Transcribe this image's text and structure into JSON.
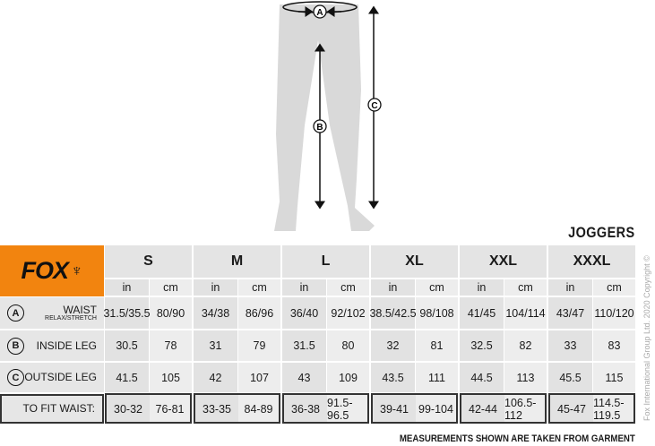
{
  "title": "JOGGERS",
  "logo_text": "FOX",
  "diagram_labels": [
    "A",
    "B",
    "C"
  ],
  "sizes": [
    "S",
    "M",
    "L",
    "XL",
    "XXL",
    "XXXL"
  ],
  "units": [
    "in",
    "cm"
  ],
  "rows": [
    {
      "marker": "A",
      "label": "WAIST",
      "sublabel": "RELAX/STRETCH",
      "values": [
        "31.5/35.5",
        "80/90",
        "34/38",
        "86/96",
        "36/40",
        "92/102",
        "38.5/42.5",
        "98/108",
        "41/45",
        "104/114",
        "43/47",
        "110/120"
      ]
    },
    {
      "marker": "B",
      "label": "INSIDE LEG",
      "values": [
        "30.5",
        "78",
        "31",
        "79",
        "31.5",
        "80",
        "32",
        "81",
        "32.5",
        "82",
        "33",
        "83"
      ]
    },
    {
      "marker": "C",
      "label": "OUTSIDE LEG",
      "values": [
        "41.5",
        "105",
        "42",
        "107",
        "43",
        "109",
        "43.5",
        "111",
        "44.5",
        "113",
        "45.5",
        "115"
      ]
    }
  ],
  "fit": {
    "label": "TO FIT WAIST:",
    "values": [
      "30-32",
      "76-81",
      "33-35",
      "84-89",
      "36-38",
      "91.5-96.5",
      "39-41",
      "99-104",
      "42-44",
      "106.5-112",
      "45-47",
      "114.5-119.5"
    ]
  },
  "footer": "MEASUREMENTS SHOWN ARE TAKEN FROM GARMENT",
  "copyright": "Fox International Group Ltd. 2020 Copyright ©",
  "colors": {
    "brand": "#f2840f",
    "silhouette": "#d9d9d9"
  }
}
